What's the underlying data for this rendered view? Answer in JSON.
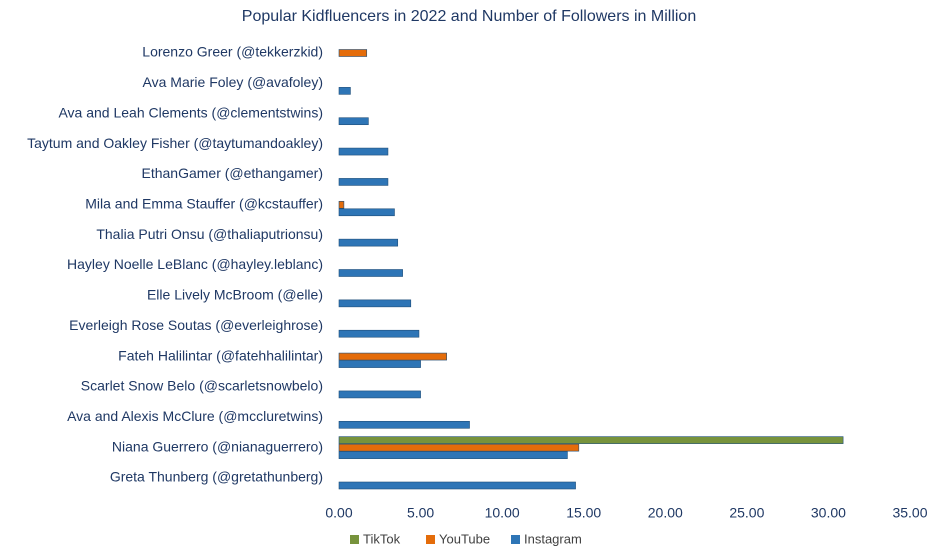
{
  "chart_data": {
    "type": "hbar",
    "title": "Popular Kidfluencers in 2022 and Number of Followers in Million",
    "categories": [
      "Lorenzo Greer (@tekkerzkid)",
      "Ava Marie Foley (@avafoley)",
      "Ava and Leah Clements (@clementstwins)",
      "Taytum and Oakley Fisher (@taytumandoakley)",
      "EthanGamer (@ethangamer)",
      "Mila and Emma Stauffer (@kcstauffer)",
      "Thalia Putri Onsu (@thaliaputrionsu)",
      "Hayley Noelle LeBlanc (@hayley.leblanc)",
      "Elle Lively McBroom (@elle)",
      "Everleigh Rose Soutas (@everleighrose)",
      "Fateh Halilintar (@fatehhalilintar)",
      "Scarlet Snow Belo (@scarletsnowbelo)",
      "Ava and Alexis McClure (@mccluretwins)",
      "Niana Guerrero (@nianaguerrero)",
      "Greta Thunberg (@gretathunberg)"
    ],
    "series": [
      {
        "name": "TikTok",
        "color": "#77933c",
        "values": [
          null,
          null,
          null,
          null,
          null,
          null,
          null,
          null,
          null,
          null,
          null,
          null,
          null,
          30.9,
          null
        ]
      },
      {
        "name": "YouTube",
        "color": "#e46c0a",
        "values": [
          1.7,
          null,
          null,
          null,
          null,
          0.3,
          null,
          null,
          null,
          null,
          6.6,
          null,
          null,
          14.7,
          null
        ]
      },
      {
        "name": "Instagram",
        "color": "#2e75b6",
        "values": [
          null,
          0.7,
          1.8,
          3.0,
          3.0,
          3.4,
          3.6,
          3.9,
          4.4,
          4.9,
          5.0,
          5.0,
          8.0,
          14.0,
          14.5
        ]
      }
    ],
    "xlim": [
      0,
      35
    ],
    "xticks": [
      {
        "value": 0,
        "label": "0.00"
      },
      {
        "value": 5,
        "label": "5.00"
      },
      {
        "value": 10,
        "label": "10.00"
      },
      {
        "value": 15,
        "label": "15.00"
      },
      {
        "value": 20,
        "label": "20.00"
      },
      {
        "value": 25,
        "label": "25.00"
      },
      {
        "value": 30,
        "label": "30.00"
      },
      {
        "value": 35,
        "label": "35.00"
      }
    ],
    "legend": "bottom"
  }
}
